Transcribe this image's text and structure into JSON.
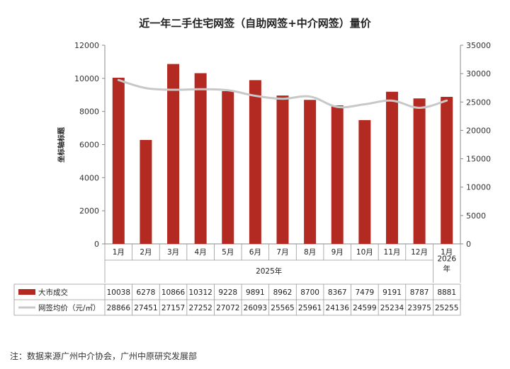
{
  "chart_data": {
    "type": "bar",
    "title": "近一年二手住宅网签（自助网签+中介网签）量价",
    "ylabel_left": "坐标轴标题",
    "ylim_left": [
      0,
      12000
    ],
    "ylim_right": [
      0,
      35000
    ],
    "left_ticks": [
      "0",
      "2000",
      "4000",
      "6000",
      "8000",
      "10000",
      "12000"
    ],
    "right_ticks": [
      "0",
      "5000",
      "10000",
      "15000",
      "20000",
      "25000",
      "30000",
      "35000"
    ],
    "categories": [
      "1月",
      "2月",
      "3月",
      "4月",
      "5月",
      "6月",
      "7月",
      "8月",
      "9月",
      "10月",
      "11月",
      "12月",
      "1月"
    ],
    "year_groups": [
      {
        "label": "2025年",
        "from": 0,
        "to": 11
      },
      {
        "label": "2026\n年",
        "from": 12,
        "to": 12
      }
    ],
    "series": [
      {
        "name": "大市成交",
        "type": "bar",
        "axis": "left",
        "color": "#b32a22",
        "values": [
          10038,
          6278,
          10866,
          10312,
          9228,
          9891,
          8962,
          8700,
          8367,
          7479,
          9191,
          8787,
          8881
        ]
      },
      {
        "name": "网签均价（元/㎡）",
        "type": "line",
        "axis": "right",
        "color": "#c8c8c8",
        "values": [
          28866,
          27451,
          27157,
          27252,
          27072,
          26093,
          25565,
          25961,
          24136,
          24599,
          25234,
          23975,
          25255
        ]
      }
    ]
  },
  "note": "注：数据来源广州中介协会，广州中原研究发展部"
}
